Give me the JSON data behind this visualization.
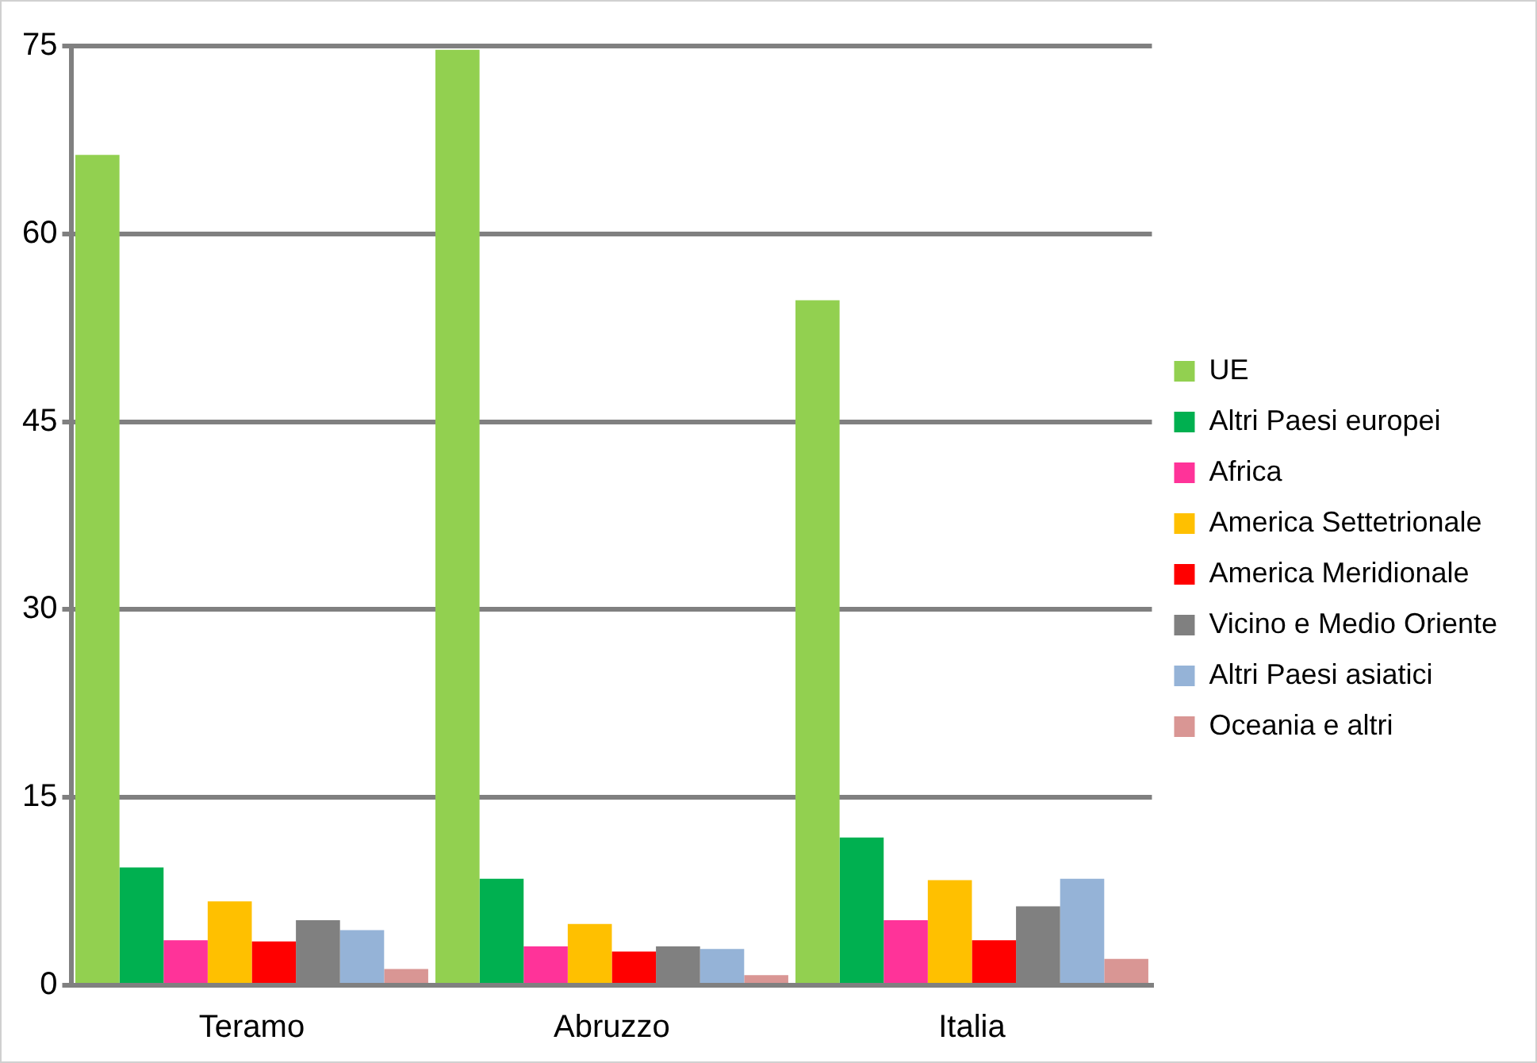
{
  "chart_data": {
    "type": "bar",
    "categories": [
      "Teramo",
      "Abruzzo",
      "Italia"
    ],
    "series": [
      {
        "name": "UE",
        "color": "#92d050",
        "values": [
          66.3,
          74.7,
          54.7
        ]
      },
      {
        "name": "Altri Paesi europei",
        "color": "#00b050",
        "values": [
          9.4,
          8.5,
          11.8
        ]
      },
      {
        "name": "Africa",
        "color": "#ff3399",
        "values": [
          3.6,
          3.1,
          5.2
        ]
      },
      {
        "name": "America Settetrionale",
        "color": "#ffc000",
        "values": [
          6.7,
          4.9,
          8.4
        ]
      },
      {
        "name": "America Meridionale",
        "color": "#ff0000",
        "values": [
          3.5,
          2.7,
          3.6
        ]
      },
      {
        "name": "Vicino e Medio Oriente",
        "color": "#808080",
        "values": [
          5.2,
          3.1,
          6.3
        ]
      },
      {
        "name": "Altri Paesi asiatici",
        "color": "#95b3d7",
        "values": [
          4.4,
          2.9,
          8.5
        ]
      },
      {
        "name": "Oceania e altri",
        "color": "#d99694",
        "values": [
          1.3,
          0.8,
          2.1
        ]
      }
    ],
    "ylim": [
      0,
      75
    ],
    "yticks": [
      0,
      15,
      30,
      45,
      60,
      75
    ],
    "grid": "y",
    "legend": "right"
  }
}
